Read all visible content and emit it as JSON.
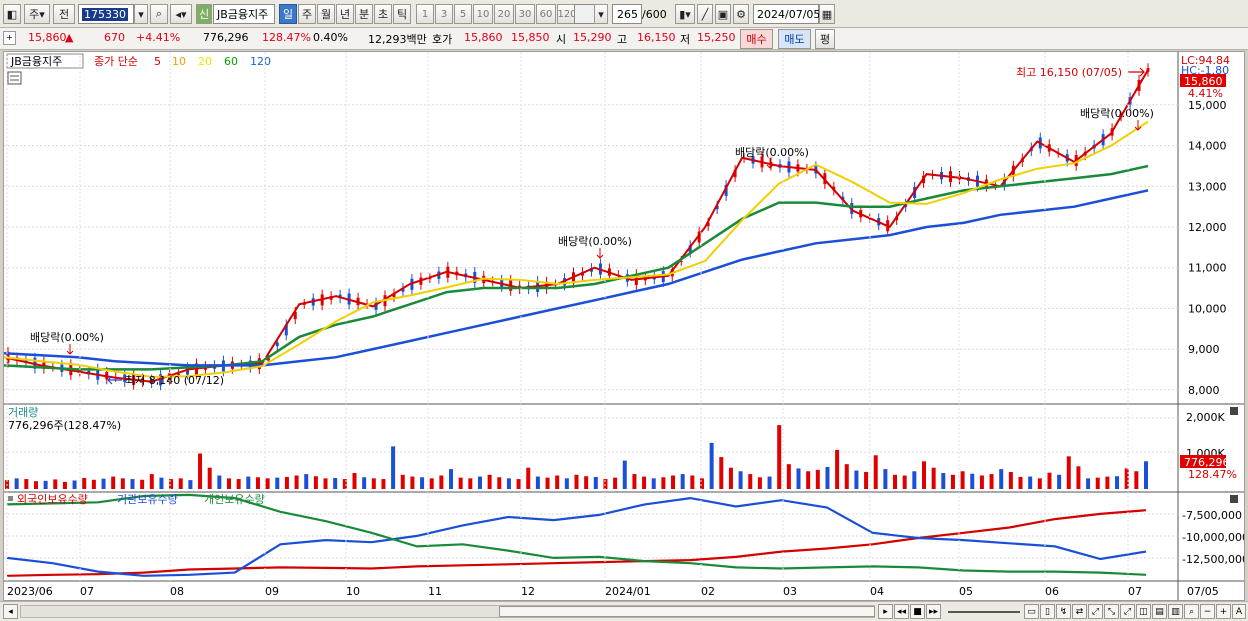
{
  "toolbar": {
    "mode_label": "주",
    "prev_label": "전",
    "code": "175330",
    "new_badge": "신",
    "stock_name": "JB금융지주",
    "periods": [
      "일",
      "주",
      "월",
      "년",
      "분",
      "초",
      "틱"
    ],
    "active_period": "일",
    "intervals": [
      "1",
      "3",
      "5",
      "10",
      "20",
      "30",
      "60",
      "120"
    ],
    "count_value": "265",
    "count_total": "/600",
    "date_value": "2024/07/05"
  },
  "quote": {
    "price": "15,860",
    "change_arrow": "▲",
    "change": "670",
    "change_pct": "+4.41%",
    "volume": "776,296",
    "volume_ratio": "128.47%",
    "turnover_pct": "0.40%",
    "amount": "12,293백만",
    "bid_label": "호가",
    "ask": "15,860",
    "bid": "15,850",
    "open_label": "시",
    "open": "15,290",
    "high_label": "고",
    "high": "16,150",
    "low_label": "저",
    "low": "15,250",
    "buy_label": "매수",
    "sell_label": "매도",
    "eval_label": "평"
  },
  "legend": {
    "name": "JB금융지주",
    "ma_label": "종가 단순",
    "ma_periods": [
      "5",
      "10",
      "20",
      "60",
      "120"
    ],
    "ma_colors": [
      "#d40000",
      "#f0a000",
      "#e8e800",
      "#00a000",
      "#1a66cc"
    ]
  },
  "price_axis": {
    "ticks": [
      "15,000",
      "14,000",
      "13,000",
      "12,000",
      "11,000",
      "10,000",
      "9,000",
      "8,000"
    ],
    "lc": "LC:94.84",
    "hc": "HC:-1.80",
    "price_tag": "15,860",
    "pct_tag": "4.41%"
  },
  "annotations": {
    "high": "최고 16,150 (07/05)",
    "low": "최저 8,140 (07/12)",
    "dividends": [
      "배당락(0.00%)",
      "배당락(0.00%)",
      "배당락(0.00%)",
      "배당락(0.00%)"
    ]
  },
  "volume_panel": {
    "title": "거래량",
    "info": "776,296주(128.47%)",
    "ticks": [
      "2,000K",
      "1,000K"
    ],
    "tag": "776,296",
    "tag_pct": "128.47%"
  },
  "holdings_panel": {
    "legend": [
      "외국인보유수량",
      "기관보유수량",
      "개인보유수량"
    ],
    "legend_colors": [
      "#d40000",
      "#1a4fd8",
      "#1a8a3a"
    ],
    "ticks": [
      "-7,500,000",
      "-10,000,000",
      "-12,500,000"
    ]
  },
  "x_axis": {
    "labels": [
      "2023/06",
      "07",
      "08",
      "09",
      "10",
      "11",
      "12",
      "2024/01",
      "02",
      "03",
      "04",
      "05",
      "06",
      "07"
    ],
    "end_label": "07/05"
  },
  "chart_data": {
    "type": "line",
    "title": "",
    "series": [
      {
        "name": "종가",
        "values": [
          8800,
          8600,
          8450,
          8300,
          8200,
          8500,
          8600,
          8650,
          10100,
          10300,
          10050,
          10600,
          10900,
          10700,
          10500,
          10600,
          11000,
          10700,
          10800,
          12000,
          13700,
          13500,
          13400,
          12400,
          12000,
          13300,
          13200,
          13000,
          14100,
          13600,
          14300,
          15860
        ]
      },
      {
        "name": "60",
        "values": [
          8600,
          8550,
          8500,
          8500,
          8500,
          8550,
          8600,
          8700,
          9300,
          9600,
          9800,
          10100,
          10400,
          10500,
          10500,
          10500,
          10600,
          10800,
          11000,
          11600,
          12200,
          12600,
          12600,
          12500,
          12500,
          12700,
          12900,
          13000,
          13100,
          13200,
          13300,
          13500
        ]
      },
      {
        "name": "120",
        "values": [
          8900,
          8850,
          8800,
          8700,
          8650,
          8600,
          8600,
          8600,
          8700,
          8800,
          9000,
          9200,
          9400,
          9600,
          9800,
          10000,
          10200,
          10400,
          10600,
          10900,
          11200,
          11400,
          11600,
          11700,
          11800,
          12000,
          12100,
          12300,
          12400,
          12500,
          12700,
          12900
        ]
      }
    ],
    "x_labels": [
      "2023/06",
      "07",
      "08",
      "09",
      "10",
      "11",
      "12",
      "2024/01",
      "02",
      "03",
      "04",
      "05",
      "06",
      "07"
    ],
    "ylim": [
      7700,
      16300
    ],
    "volume_values_k": [
      250,
      300,
      280,
      220,
      230,
      270,
      200,
      240,
      310,
      260,
      290,
      350,
      300,
      280,
      260,
      420,
      320,
      280,
      300,
      250,
      1000,
      600,
      380,
      300,
      280,
      350,
      330,
      300,
      320,
      340,
      380,
      420,
      360,
      300,
      310,
      280,
      450,
      330,
      300,
      280,
      1200,
      400,
      350,
      330,
      300,
      380,
      560,
      320,
      300,
      350,
      400,
      330,
      300,
      280,
      600,
      350,
      320,
      380,
      300,
      400,
      360,
      340,
      280,
      320,
      800,
      420,
      350,
      300,
      330,
      380,
      420,
      380,
      300,
      1300,
      900,
      600,
      500,
      420,
      330,
      350,
      1800,
      700,
      580,
      500,
      540,
      620,
      1100,
      700,
      520,
      480,
      950,
      560,
      400,
      380,
      500,
      780,
      600,
      450,
      400,
      500,
      430,
      380,
      420,
      560,
      480,
      340,
      350,
      300,
      460,
      400,
      920,
      640,
      300,
      320,
      350,
      360,
      580,
      500,
      780
    ],
    "holdings": {
      "foreign": [
        -13600,
        -13500,
        -13450,
        -13300,
        -13000,
        -12900,
        -12800,
        -12850,
        -12900,
        -12700,
        -12600,
        -12500,
        -12400,
        -12300,
        -12200,
        -12100,
        -11800,
        -11300,
        -11000,
        -10600,
        -10000,
        -9500,
        -9000,
        -8200,
        -7700,
        -7350
      ],
      "institution": [
        -11900,
        -12400,
        -13200,
        -13600,
        -13500,
        -13300,
        -10600,
        -10200,
        -10400,
        -9800,
        -8800,
        -8000,
        -8300,
        -7800,
        -6800,
        -6200,
        -7000,
        -6400,
        -7100,
        -9500,
        -10000,
        -10200,
        -10500,
        -10800,
        -12000,
        -11300
      ],
      "individual": [
        -6800,
        -6700,
        -6600,
        -6000,
        -5900,
        -6200,
        -7500,
        -8400,
        -9500,
        -10800,
        -10600,
        -11200,
        -11900,
        -11800,
        -12200,
        -12400,
        -12800,
        -12900,
        -12800,
        -12700,
        -12800,
        -13100,
        -13200,
        -13200,
        -13300,
        -13500
      ]
    }
  }
}
